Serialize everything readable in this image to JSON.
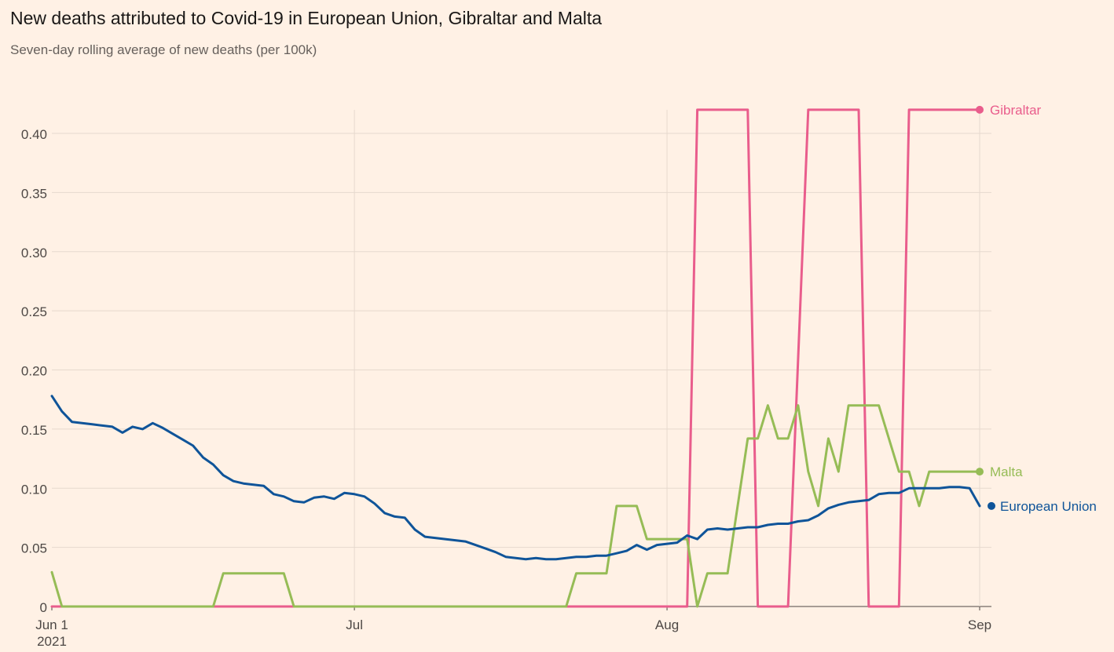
{
  "title": "New deaths attributed to Covid-19 in European Union, Gibraltar and Malta",
  "subtitle": "Seven-day rolling average of new deaths (per 100k)",
  "chart_data": {
    "type": "line",
    "x_start": "2021-06-01",
    "x_end": "2021-09-01",
    "ylim": [
      0,
      0.42
    ],
    "y_ticks": [
      0,
      0.05,
      0.1,
      0.15,
      0.2,
      0.25,
      0.3,
      0.35,
      0.4
    ],
    "y_tick_labels": [
      "0",
      "0.05",
      "0.10",
      "0.15",
      "0.20",
      "0.25",
      "0.30",
      "0.35",
      "0.40"
    ],
    "x_ticks": [
      {
        "date": "2021-06-01",
        "label": "Jun 1",
        "sublabel": "2021"
      },
      {
        "date": "2021-07-01",
        "label": "Jul",
        "sublabel": ""
      },
      {
        "date": "2021-08-01",
        "label": "Aug",
        "sublabel": ""
      },
      {
        "date": "2021-09-01",
        "label": "Sep",
        "sublabel": ""
      }
    ],
    "grid": true,
    "series": [
      {
        "name": "Gibraltar",
        "color": "#e95d8c",
        "points": [
          [
            "2021-06-01",
            0
          ],
          [
            "2021-08-03",
            0
          ],
          [
            "2021-08-04",
            0.42
          ],
          [
            "2021-08-09",
            0.42
          ],
          [
            "2021-08-10",
            0
          ],
          [
            "2021-08-13",
            0
          ],
          [
            "2021-08-15",
            0.42
          ],
          [
            "2021-08-20",
            0.42
          ],
          [
            "2021-08-21",
            0
          ],
          [
            "2021-08-24",
            0
          ],
          [
            "2021-08-25",
            0.42
          ],
          [
            "2021-09-01",
            0.42
          ]
        ]
      },
      {
        "name": "Malta",
        "color": "#96bc56",
        "points": [
          [
            "2021-06-01",
            0.029
          ],
          [
            "2021-06-02",
            0
          ],
          [
            "2021-06-17",
            0
          ],
          [
            "2021-06-18",
            0.028
          ],
          [
            "2021-06-24",
            0.028
          ],
          [
            "2021-06-25",
            0
          ],
          [
            "2021-07-22",
            0
          ],
          [
            "2021-07-23",
            0.028
          ],
          [
            "2021-07-26",
            0.028
          ],
          [
            "2021-07-27",
            0.085
          ],
          [
            "2021-07-29",
            0.085
          ],
          [
            "2021-07-30",
            0.057
          ],
          [
            "2021-08-03",
            0.057
          ],
          [
            "2021-08-04",
            0
          ],
          [
            "2021-08-05",
            0.028
          ],
          [
            "2021-08-07",
            0.028
          ],
          [
            "2021-08-09",
            0.142
          ],
          [
            "2021-08-10",
            0.142
          ],
          [
            "2021-08-11",
            0.17
          ],
          [
            "2021-08-12",
            0.142
          ],
          [
            "2021-08-13",
            0.142
          ],
          [
            "2021-08-14",
            0.17
          ],
          [
            "2021-08-15",
            0.114
          ],
          [
            "2021-08-16",
            0.085
          ],
          [
            "2021-08-17",
            0.142
          ],
          [
            "2021-08-18",
            0.114
          ],
          [
            "2021-08-19",
            0.17
          ],
          [
            "2021-08-22",
            0.17
          ],
          [
            "2021-08-24",
            0.114
          ],
          [
            "2021-08-25",
            0.114
          ],
          [
            "2021-08-26",
            0.085
          ],
          [
            "2021-08-27",
            0.114
          ],
          [
            "2021-09-01",
            0.114
          ]
        ]
      },
      {
        "name": "European Union",
        "color": "#0f5499",
        "points": [
          [
            "2021-06-01",
            0.178
          ],
          [
            "2021-06-02",
            0.165
          ],
          [
            "2021-06-03",
            0.156
          ],
          [
            "2021-06-04",
            0.155
          ],
          [
            "2021-06-05",
            0.154
          ],
          [
            "2021-06-06",
            0.153
          ],
          [
            "2021-06-07",
            0.152
          ],
          [
            "2021-06-08",
            0.147
          ],
          [
            "2021-06-09",
            0.152
          ],
          [
            "2021-06-10",
            0.15
          ],
          [
            "2021-06-11",
            0.155
          ],
          [
            "2021-06-12",
            0.151
          ],
          [
            "2021-06-13",
            0.146
          ],
          [
            "2021-06-14",
            0.141
          ],
          [
            "2021-06-15",
            0.136
          ],
          [
            "2021-06-16",
            0.126
          ],
          [
            "2021-06-17",
            0.12
          ],
          [
            "2021-06-18",
            0.111
          ],
          [
            "2021-06-19",
            0.106
          ],
          [
            "2021-06-20",
            0.104
          ],
          [
            "2021-06-21",
            0.103
          ],
          [
            "2021-06-22",
            0.102
          ],
          [
            "2021-06-23",
            0.095
          ],
          [
            "2021-06-24",
            0.093
          ],
          [
            "2021-06-25",
            0.089
          ],
          [
            "2021-06-26",
            0.088
          ],
          [
            "2021-06-27",
            0.092
          ],
          [
            "2021-06-28",
            0.093
          ],
          [
            "2021-06-29",
            0.091
          ],
          [
            "2021-06-30",
            0.096
          ],
          [
            "2021-07-01",
            0.095
          ],
          [
            "2021-07-02",
            0.093
          ],
          [
            "2021-07-03",
            0.087
          ],
          [
            "2021-07-04",
            0.079
          ],
          [
            "2021-07-05",
            0.076
          ],
          [
            "2021-07-06",
            0.075
          ],
          [
            "2021-07-07",
            0.065
          ],
          [
            "2021-07-08",
            0.059
          ],
          [
            "2021-07-09",
            0.058
          ],
          [
            "2021-07-10",
            0.057
          ],
          [
            "2021-07-11",
            0.056
          ],
          [
            "2021-07-12",
            0.055
          ],
          [
            "2021-07-13",
            0.052
          ],
          [
            "2021-07-14",
            0.049
          ],
          [
            "2021-07-15",
            0.046
          ],
          [
            "2021-07-16",
            0.042
          ],
          [
            "2021-07-17",
            0.041
          ],
          [
            "2021-07-18",
            0.04
          ],
          [
            "2021-07-19",
            0.041
          ],
          [
            "2021-07-20",
            0.04
          ],
          [
            "2021-07-21",
            0.04
          ],
          [
            "2021-07-22",
            0.041
          ],
          [
            "2021-07-23",
            0.042
          ],
          [
            "2021-07-24",
            0.042
          ],
          [
            "2021-07-25",
            0.043
          ],
          [
            "2021-07-26",
            0.043
          ],
          [
            "2021-07-27",
            0.045
          ],
          [
            "2021-07-28",
            0.047
          ],
          [
            "2021-07-29",
            0.052
          ],
          [
            "2021-07-30",
            0.048
          ],
          [
            "2021-07-31",
            0.052
          ],
          [
            "2021-08-01",
            0.053
          ],
          [
            "2021-08-02",
            0.054
          ],
          [
            "2021-08-03",
            0.06
          ],
          [
            "2021-08-04",
            0.057
          ],
          [
            "2021-08-05",
            0.065
          ],
          [
            "2021-08-06",
            0.066
          ],
          [
            "2021-08-07",
            0.065
          ],
          [
            "2021-08-08",
            0.066
          ],
          [
            "2021-08-09",
            0.067
          ],
          [
            "2021-08-10",
            0.067
          ],
          [
            "2021-08-11",
            0.069
          ],
          [
            "2021-08-12",
            0.07
          ],
          [
            "2021-08-13",
            0.07
          ],
          [
            "2021-08-14",
            0.072
          ],
          [
            "2021-08-15",
            0.073
          ],
          [
            "2021-08-16",
            0.077
          ],
          [
            "2021-08-17",
            0.083
          ],
          [
            "2021-08-18",
            0.086
          ],
          [
            "2021-08-19",
            0.088
          ],
          [
            "2021-08-20",
            0.089
          ],
          [
            "2021-08-21",
            0.09
          ],
          [
            "2021-08-22",
            0.095
          ],
          [
            "2021-08-23",
            0.096
          ],
          [
            "2021-08-24",
            0.096
          ],
          [
            "2021-08-25",
            0.1
          ],
          [
            "2021-08-26",
            0.1
          ],
          [
            "2021-08-27",
            0.1
          ],
          [
            "2021-08-28",
            0.1
          ],
          [
            "2021-08-29",
            0.101
          ],
          [
            "2021-08-30",
            0.101
          ],
          [
            "2021-08-31",
            0.1
          ],
          [
            "2021-09-01",
            0.085
          ]
        ]
      }
    ]
  },
  "colors": {
    "background": "#fff1e5",
    "grid": "#e6d9ce",
    "axis_text": "#4d4845"
  }
}
